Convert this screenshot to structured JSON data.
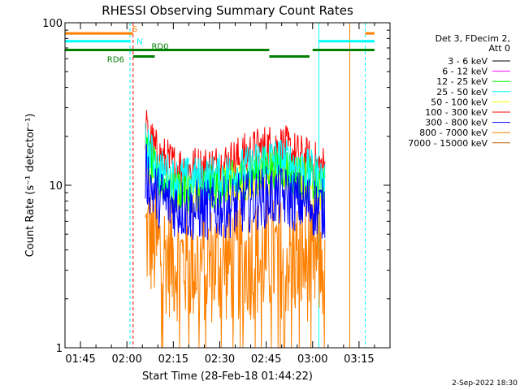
{
  "chart_data": {
    "type": "line",
    "title": "RHESSI Observing Summary Count Rates",
    "xlabel": "Start Time (28-Feb-18 01:44:22)",
    "ylabel": "Count Rate (s⁻¹ detector⁻¹)",
    "y_scale": "log",
    "ylim": [
      1,
      100
    ],
    "xlim": [
      "01:40",
      "03:25"
    ],
    "x_ticks": [
      "01:45",
      "02:00",
      "02:15",
      "02:30",
      "02:45",
      "03:00",
      "03:15"
    ],
    "y_ticks": [
      "1",
      "10",
      "100"
    ],
    "legend_header": [
      "Det 3, FDecim 2,",
      "Att 0"
    ],
    "legend_position": "right",
    "series": [
      {
        "name": "3 - 6 keV",
        "color": "#000000",
        "x": [],
        "values": []
      },
      {
        "name": "6 - 12 keV",
        "color": "#ff00ff",
        "x": [],
        "values": []
      },
      {
        "name": "12 - 25 keV",
        "color": "#00ff00",
        "x": [
          "02:06",
          "02:10",
          "02:15",
          "02:20",
          "02:25",
          "02:30",
          "02:35",
          "02:40",
          "02:45",
          "02:50",
          "02:55",
          "03:00",
          "03:04"
        ],
        "values": [
          16,
          11,
          9.5,
          9.5,
          9.5,
          10,
          10.5,
          11.5,
          13,
          13,
          11.5,
          10.5,
          9.5
        ]
      },
      {
        "name": "25 - 50 keV",
        "color": "#00ffff",
        "x": [
          "02:06",
          "02:10",
          "02:15",
          "02:20",
          "02:25",
          "02:30",
          "02:35",
          "02:40",
          "02:45",
          "02:50",
          "02:55",
          "03:00",
          "03:04"
        ],
        "values": [
          18,
          12.5,
          11,
          11,
          11,
          11.5,
          12,
          13,
          14.5,
          14.5,
          13,
          12,
          10.5
        ]
      },
      {
        "name": "50 - 100 keV",
        "color": "#ffff00",
        "x": [
          "02:06",
          "02:10",
          "02:15",
          "02:20",
          "02:25",
          "02:30",
          "02:35",
          "02:40",
          "02:45",
          "02:50",
          "02:55",
          "03:00",
          "03:04"
        ],
        "values": [
          15,
          11,
          9,
          9,
          9,
          9.5,
          10,
          11,
          12,
          12,
          11,
          10,
          9
        ]
      },
      {
        "name": "100 - 300 keV",
        "color": "#ff0000",
        "x": [
          "02:06",
          "02:08",
          "02:10",
          "02:15",
          "02:20",
          "02:25",
          "02:30",
          "02:35",
          "02:40",
          "02:45",
          "02:50",
          "02:55",
          "03:00",
          "03:04"
        ],
        "values": [
          22,
          18,
          15,
          13,
          12.5,
          12.5,
          13,
          14,
          15.5,
          17,
          17,
          15,
          13.5,
          12.5
        ]
      },
      {
        "name": "300 - 800 keV",
        "color": "#0000ff",
        "x": [
          "02:06",
          "02:08",
          "02:10",
          "02:15",
          "02:20",
          "02:25",
          "02:30",
          "02:35",
          "02:40",
          "02:45",
          "02:50",
          "02:55",
          "03:00",
          "03:04"
        ],
        "values": [
          12,
          9.5,
          8.5,
          7.5,
          7,
          7,
          7.2,
          7.5,
          8,
          8.5,
          8.5,
          8,
          7.5,
          7
        ]
      },
      {
        "name": "800 - 7000 keV",
        "color": "#ff8000",
        "x": [
          "02:06",
          "02:10",
          "02:15",
          "02:20",
          "02:25",
          "02:30",
          "02:35",
          "02:40",
          "02:45",
          "02:50",
          "02:55",
          "03:00",
          "03:04"
        ],
        "values": [
          5,
          4,
          3.5,
          3.3,
          3.3,
          3.3,
          3.4,
          3.5,
          3.6,
          3.6,
          3.5,
          3.4,
          3.3
        ]
      },
      {
        "name": "7000 - 15000 keV",
        "color": "#c06000",
        "x": [],
        "values": []
      }
    ],
    "attenuator_bars": [
      {
        "label": "S",
        "color": "#ff8000",
        "segments": [
          [
            "01:40",
            "02:02"
          ],
          [
            "03:17",
            "03:20"
          ]
        ],
        "level": 86
      },
      {
        "label": "N",
        "color": "#00ffff",
        "segments": [
          [
            "01:40",
            "02:01"
          ],
          [
            "03:02",
            "03:20"
          ]
        ],
        "level": 77
      },
      {
        "label": "RD0",
        "color": "#008000",
        "segments": [
          [
            "01:40",
            "02:09"
          ],
          [
            "02:09",
            "02:46"
          ],
          [
            "03:00",
            "03:20"
          ]
        ],
        "level": 68
      },
      {
        "label": "RD6",
        "color": "#008000",
        "segments": [
          [
            "02:02",
            "02:09"
          ],
          [
            "02:46",
            "02:59"
          ]
        ],
        "level": 62
      }
    ],
    "vertical_markers": [
      {
        "x": "01:40",
        "color": "#00ffff",
        "style": "solid"
      },
      {
        "x": "02:01",
        "color": "#00ffff",
        "style": "dashed"
      },
      {
        "x": "02:02",
        "color": "#ff0000",
        "style": "dashed"
      },
      {
        "x": "03:02",
        "color": "#00ffff",
        "style": "solid"
      },
      {
        "x": "03:12",
        "color": "#ff8000",
        "style": "solid"
      },
      {
        "x": "03:17",
        "color": "#00ffff",
        "style": "dashed"
      }
    ]
  },
  "timestamp": "2-Sep-2022 18:30"
}
